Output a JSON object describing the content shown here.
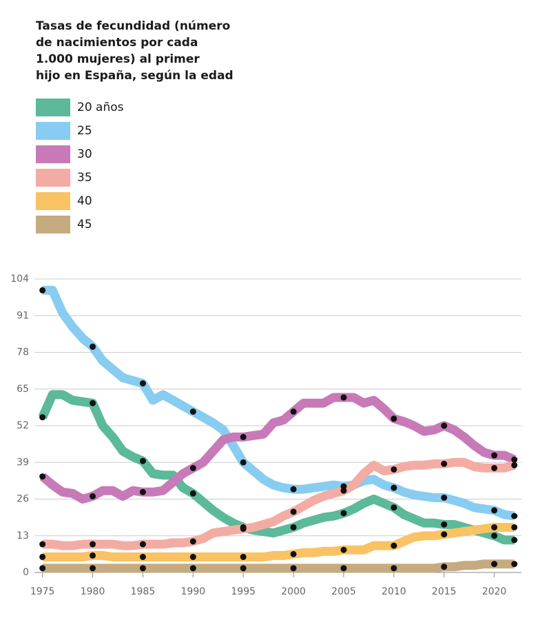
{
  "chart_data": {
    "type": "line",
    "title": [
      "Tasas de fecundidad (número",
      "de nacimientos por cada",
      "1.000 mujeres) al primer",
      "hijo en España, según la edad"
    ],
    "x": [
      1975,
      1976,
      1977,
      1978,
      1979,
      1980,
      1981,
      1982,
      1983,
      1984,
      1985,
      1986,
      1987,
      1988,
      1989,
      1990,
      1991,
      1992,
      1993,
      1994,
      1995,
      1996,
      1997,
      1998,
      1999,
      2000,
      2001,
      2002,
      2003,
      2004,
      2005,
      2006,
      2007,
      2008,
      2009,
      2010,
      2011,
      2012,
      2013,
      2014,
      2015,
      2016,
      2017,
      2018,
      2019,
      2020,
      2021,
      2022
    ],
    "series": [
      {
        "name": "20 años",
        "color": "#5cb999",
        "values": [
          55,
          63,
          63,
          61,
          60.5,
          60,
          52,
          48,
          43,
          41,
          39.5,
          35,
          34.5,
          34.5,
          30,
          28,
          25,
          22,
          19.5,
          17.5,
          16,
          15,
          14.5,
          14,
          15,
          16,
          17.5,
          18.5,
          19.5,
          20,
          21,
          22.5,
          24.5,
          26,
          24.5,
          23,
          20.5,
          19,
          17.5,
          17.5,
          17,
          17,
          16,
          15,
          14,
          13,
          11.5,
          11.5
        ]
      },
      {
        "name": "25",
        "color": "#88ccf1",
        "values": [
          100,
          100,
          92,
          87,
          83,
          80,
          75,
          72,
          69,
          68,
          67,
          61,
          63,
          61,
          59,
          57,
          55,
          53,
          50.5,
          45,
          39,
          36,
          33,
          31,
          30,
          29.5,
          29.5,
          30,
          30.5,
          31,
          30.5,
          31,
          32.5,
          33,
          31,
          30,
          28.5,
          27.5,
          27,
          26.5,
          26.5,
          25.5,
          24.5,
          23,
          22.5,
          22,
          20.5,
          20
        ]
      },
      {
        "name": "30",
        "color": "#c77ab7",
        "values": [
          34,
          31,
          28.5,
          28,
          26,
          27,
          29,
          29,
          27,
          29,
          28.5,
          28.5,
          29,
          32,
          35,
          37,
          39,
          43,
          47,
          48,
          48,
          48.5,
          49,
          53,
          54,
          57,
          60,
          60,
          60,
          62,
          62,
          62,
          60,
          61,
          58,
          54.5,
          53.5,
          52,
          50,
          50.5,
          52,
          50.5,
          48,
          45,
          42.5,
          41.5,
          41.5,
          40
        ]
      },
      {
        "name": "35",
        "color": "#f3aca3",
        "values": [
          10,
          10,
          9.5,
          9.5,
          10,
          10,
          10,
          10,
          9.5,
          9.5,
          10,
          10,
          10,
          10.5,
          10.5,
          11,
          12,
          14,
          14.5,
          15,
          15.5,
          16,
          17,
          18,
          20,
          21.5,
          23.5,
          25.5,
          27,
          28,
          29,
          31,
          35,
          38,
          36,
          36.5,
          37.5,
          38,
          38,
          38.5,
          38.5,
          39,
          39,
          37.5,
          37,
          37,
          37,
          38
        ]
      },
      {
        "name": "40",
        "color": "#f9c263",
        "values": [
          5.5,
          5.5,
          5.5,
          5.5,
          5.5,
          6,
          6,
          5.5,
          5.5,
          5.5,
          5.5,
          5.5,
          5.5,
          5.5,
          5.5,
          5.5,
          5.5,
          5.5,
          5.5,
          5.5,
          5.5,
          5.5,
          5.5,
          6,
          6,
          6.5,
          7,
          7,
          7.5,
          7.5,
          8,
          8,
          8,
          9.5,
          9.5,
          9.5,
          11,
          12.5,
          13,
          13,
          13.5,
          14,
          14.5,
          15,
          15.5,
          16,
          16,
          16
        ]
      },
      {
        "name": "45",
        "color": "#c6ab80",
        "values": [
          1.5,
          1.5,
          1.5,
          1.5,
          1.5,
          1.5,
          1.5,
          1.5,
          1.5,
          1.5,
          1.5,
          1.5,
          1.5,
          1.5,
          1.5,
          1.5,
          1.5,
          1.5,
          1.5,
          1.5,
          1.5,
          1.5,
          1.5,
          1.5,
          1.5,
          1.5,
          1.5,
          1.5,
          1.5,
          1.5,
          1.5,
          1.5,
          1.5,
          1.5,
          1.5,
          1.5,
          1.5,
          1.5,
          1.5,
          1.5,
          2,
          2,
          2.5,
          2.5,
          3,
          3,
          3,
          3
        ]
      }
    ],
    "xlim": [
      1974.2,
      2022.7
    ],
    "xticks": [
      1975,
      1980,
      1985,
      1990,
      1995,
      2000,
      2005,
      2010,
      2015,
      2020
    ],
    "ylim": [
      0,
      104
    ],
    "yticks": [
      0,
      13,
      26,
      39,
      52,
      65,
      78,
      91,
      104
    ],
    "grid": true
  }
}
